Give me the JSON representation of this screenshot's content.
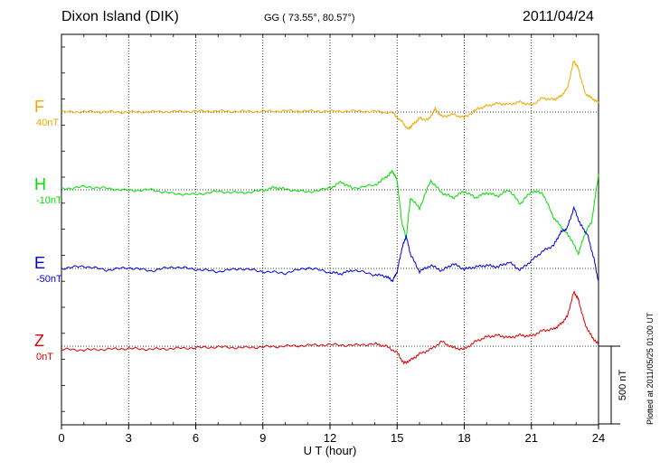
{
  "header": {
    "station": "Dixon Island (DIK)",
    "coords": "GG ( 73.55°,  80.57°)",
    "date": "2011/04/24"
  },
  "plotted_note": "Plotted at 2011/05/25 01:00 UT",
  "chart_data": {
    "type": "line",
    "title": "Dixon Island (DIK)",
    "xlabel": "U T (hour)",
    "xlim": [
      0,
      24
    ],
    "xticks": [
      "0",
      "3",
      "6",
      "9",
      "12",
      "15",
      "18",
      "21",
      "24"
    ],
    "grid": true,
    "scale_bar": {
      "label": "500 nT",
      "value": 500
    },
    "series": [
      {
        "name": "F",
        "baseline_label": "40nT",
        "color": "#f0a800",
        "points": [
          [
            0,
            0
          ],
          [
            1,
            2
          ],
          [
            2,
            1
          ],
          [
            3,
            0
          ],
          [
            4,
            2
          ],
          [
            5,
            3
          ],
          [
            6,
            5
          ],
          [
            7,
            6
          ],
          [
            8,
            4
          ],
          [
            9,
            5
          ],
          [
            10,
            7
          ],
          [
            11,
            6
          ],
          [
            12,
            5
          ],
          [
            13,
            6
          ],
          [
            14,
            4
          ],
          [
            14.8,
            -5
          ],
          [
            15.2,
            -60
          ],
          [
            15.5,
            -110
          ],
          [
            15.7,
            -80
          ],
          [
            16,
            -40
          ],
          [
            16.4,
            -50
          ],
          [
            16.7,
            20
          ],
          [
            17,
            -30
          ],
          [
            17.5,
            -15
          ],
          [
            18,
            -35
          ],
          [
            18.6,
            20
          ],
          [
            19,
            40
          ],
          [
            19.5,
            55
          ],
          [
            20,
            50
          ],
          [
            20.5,
            65
          ],
          [
            21,
            45
          ],
          [
            21.5,
            90
          ],
          [
            22,
            80
          ],
          [
            22.3,
            100
          ],
          [
            22.6,
            150
          ],
          [
            22.9,
            330
          ],
          [
            23.1,
            280
          ],
          [
            23.4,
            120
          ],
          [
            23.7,
            90
          ],
          [
            24,
            60
          ]
        ]
      },
      {
        "name": "H",
        "baseline_label": "-10nT",
        "color": "#00dd00",
        "points": [
          [
            0,
            5
          ],
          [
            1,
            20
          ],
          [
            2,
            10
          ],
          [
            3,
            -5
          ],
          [
            4,
            0
          ],
          [
            5,
            -25
          ],
          [
            6,
            -30
          ],
          [
            7,
            -10
          ],
          [
            8,
            -20
          ],
          [
            9,
            -5
          ],
          [
            9.5,
            15
          ],
          [
            10,
            5
          ],
          [
            11,
            -15
          ],
          [
            12,
            10
          ],
          [
            12.5,
            50
          ],
          [
            13,
            10
          ],
          [
            14,
            30
          ],
          [
            14.5,
            80
          ],
          [
            14.8,
            120
          ],
          [
            15,
            60
          ],
          [
            15.2,
            -200
          ],
          [
            15.4,
            -310
          ],
          [
            15.6,
            -50
          ],
          [
            16,
            -120
          ],
          [
            16.5,
            60
          ],
          [
            17,
            -20
          ],
          [
            17.5,
            -50
          ],
          [
            18,
            -10
          ],
          [
            18.5,
            -50
          ],
          [
            19,
            -20
          ],
          [
            19.5,
            -40
          ],
          [
            20,
            0
          ],
          [
            20.5,
            -90
          ],
          [
            21,
            -10
          ],
          [
            21.5,
            -20
          ],
          [
            22,
            -180
          ],
          [
            22.4,
            -250
          ],
          [
            22.7,
            -300
          ],
          [
            23.1,
            -410
          ],
          [
            23.4,
            -280
          ],
          [
            23.7,
            -200
          ],
          [
            24,
            100
          ]
        ]
      },
      {
        "name": "E",
        "baseline_label": "-50nT",
        "color": "#0000dd",
        "points": [
          [
            0,
            0
          ],
          [
            1,
            15
          ],
          [
            2,
            -10
          ],
          [
            3,
            5
          ],
          [
            4,
            -15
          ],
          [
            5,
            10
          ],
          [
            6,
            -5
          ],
          [
            7,
            -20
          ],
          [
            8,
            0
          ],
          [
            9,
            -20
          ],
          [
            10,
            -30
          ],
          [
            11,
            5
          ],
          [
            12,
            -25
          ],
          [
            12.5,
            -35
          ],
          [
            13,
            -10
          ],
          [
            14,
            -40
          ],
          [
            14.5,
            -50
          ],
          [
            14.8,
            -80
          ],
          [
            15,
            -20
          ],
          [
            15.2,
            120
          ],
          [
            15.4,
            210
          ],
          [
            15.6,
            90
          ],
          [
            16,
            -20
          ],
          [
            16.5,
            20
          ],
          [
            17,
            -15
          ],
          [
            17.5,
            30
          ],
          [
            18,
            -5
          ],
          [
            18.5,
            10
          ],
          [
            19,
            20
          ],
          [
            19.5,
            10
          ],
          [
            20,
            40
          ],
          [
            20.5,
            -10
          ],
          [
            21,
            50
          ],
          [
            21.5,
            110
          ],
          [
            22,
            150
          ],
          [
            22.3,
            230
          ],
          [
            22.6,
            260
          ],
          [
            22.9,
            390
          ],
          [
            23.2,
            280
          ],
          [
            23.5,
            220
          ],
          [
            23.8,
            60
          ],
          [
            24,
            -90
          ]
        ]
      },
      {
        "name": "Z",
        "baseline_label": "0nT",
        "color": "#dd0000",
        "points": [
          [
            0,
            -20
          ],
          [
            1,
            -25
          ],
          [
            2,
            -20
          ],
          [
            3,
            -15
          ],
          [
            4,
            -20
          ],
          [
            5,
            -15
          ],
          [
            6,
            -10
          ],
          [
            7,
            -5
          ],
          [
            8,
            -10
          ],
          [
            9,
            -5
          ],
          [
            10,
            0
          ],
          [
            11,
            5
          ],
          [
            12,
            10
          ],
          [
            13,
            5
          ],
          [
            14,
            15
          ],
          [
            14.5,
            0
          ],
          [
            15,
            -40
          ],
          [
            15.3,
            -110
          ],
          [
            15.6,
            -90
          ],
          [
            16,
            -50
          ],
          [
            16.5,
            -20
          ],
          [
            17,
            30
          ],
          [
            17.5,
            -10
          ],
          [
            18,
            -20
          ],
          [
            18.5,
            30
          ],
          [
            19,
            60
          ],
          [
            19.5,
            70
          ],
          [
            20,
            55
          ],
          [
            20.5,
            70
          ],
          [
            21,
            65
          ],
          [
            21.5,
            100
          ],
          [
            22,
            110
          ],
          [
            22.3,
            140
          ],
          [
            22.6,
            190
          ],
          [
            22.9,
            350
          ],
          [
            23.1,
            300
          ],
          [
            23.4,
            140
          ],
          [
            23.7,
            60
          ],
          [
            24,
            10
          ]
        ]
      }
    ]
  }
}
